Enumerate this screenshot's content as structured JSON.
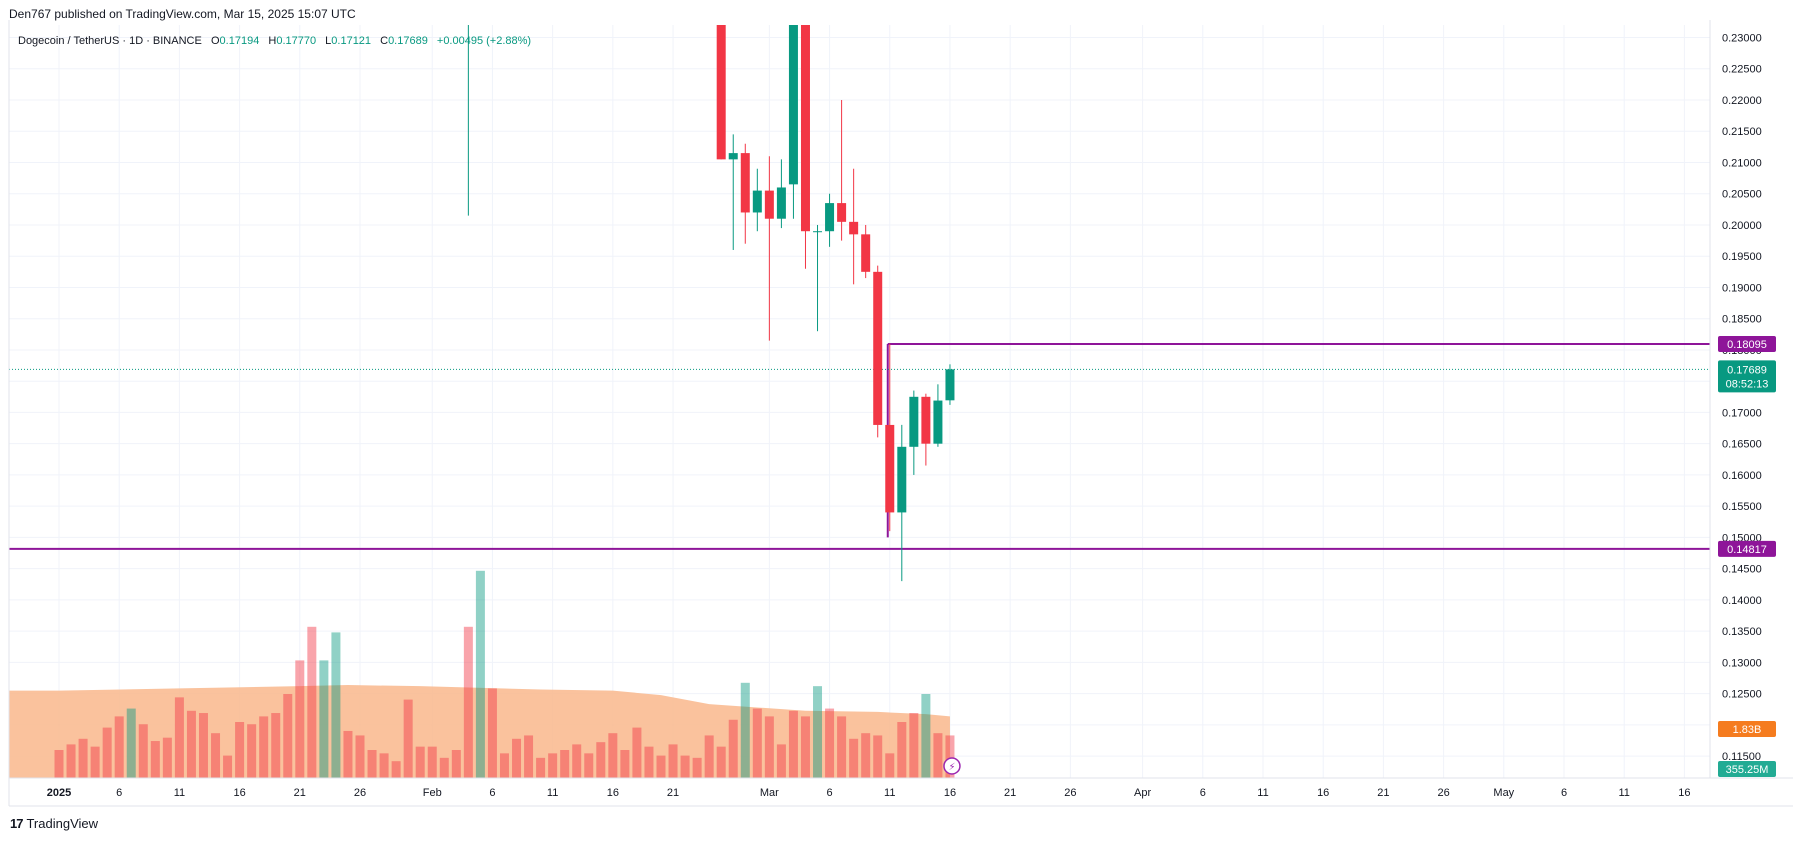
{
  "header": {
    "published": "Den767 published on TradingView.com, Mar 15, 2025 15:07 UTC"
  },
  "legend": {
    "symbol": "Dogecoin / TetherUS · 1D · BINANCE",
    "o_label": "O",
    "o": "0.17194",
    "h_label": "H",
    "h": "0.17770",
    "l_label": "L",
    "l": "0.17121",
    "c_label": "C",
    "c": "0.17689",
    "change": "+0.00495 (+2.88%)"
  },
  "footer": {
    "logo": "17",
    "brand": "TradingView"
  },
  "colors": {
    "up": "#089981",
    "down": "#f23645",
    "level": "#8e1599",
    "volume_ma": "#f9b78c"
  },
  "chart_data": {
    "type": "candlestick",
    "price_axis": {
      "ticks": [
        "0.23000",
        "0.22500",
        "0.22000",
        "0.21500",
        "0.21000",
        "0.20500",
        "0.20000",
        "0.19500",
        "0.19000",
        "0.18500",
        "0.18000",
        "0.17500",
        "0.17000",
        "0.16500",
        "0.16000",
        "0.15500",
        "0.15000",
        "0.14500",
        "0.14000",
        "0.13500",
        "0.13000",
        "0.12500",
        "0.12000",
        "0.11500"
      ],
      "range": [
        0.1115,
        0.232
      ]
    },
    "time_axis": {
      "labels": [
        {
          "text": "2025",
          "day": 0,
          "bold": true
        },
        {
          "text": "6",
          "day": 5
        },
        {
          "text": "11",
          "day": 10
        },
        {
          "text": "16",
          "day": 15
        },
        {
          "text": "21",
          "day": 20
        },
        {
          "text": "26",
          "day": 25
        },
        {
          "text": "Feb",
          "day": 31
        },
        {
          "text": "6",
          "day": 36
        },
        {
          "text": "11",
          "day": 41
        },
        {
          "text": "16",
          "day": 46
        },
        {
          "text": "21",
          "day": 51
        },
        {
          "text": "Mar",
          "day": 59
        },
        {
          "text": "6",
          "day": 64
        },
        {
          "text": "11",
          "day": 69
        },
        {
          "text": "16",
          "day": 74
        },
        {
          "text": "21",
          "day": 79
        },
        {
          "text": "26",
          "day": 84
        },
        {
          "text": "Apr",
          "day": 90
        },
        {
          "text": "6",
          "day": 95
        },
        {
          "text": "11",
          "day": 100
        },
        {
          "text": "16",
          "day": 105
        },
        {
          "text": "21",
          "day": 110
        },
        {
          "text": "26",
          "day": 115
        },
        {
          "text": "May",
          "day": 120
        },
        {
          "text": "6",
          "day": 125
        },
        {
          "text": "11",
          "day": 130
        },
        {
          "text": "16",
          "day": 135
        }
      ]
    },
    "candles": [
      {
        "day": 34,
        "o": 0.235,
        "h": 0.24,
        "l": 0.2015,
        "c": 0.238
      },
      {
        "day": 55,
        "o": 0.235,
        "h": 0.235,
        "l": 0.2105,
        "c": 0.2105
      },
      {
        "day": 56,
        "o": 0.2105,
        "h": 0.2145,
        "l": 0.196,
        "c": 0.2115
      },
      {
        "day": 57,
        "o": 0.2115,
        "h": 0.213,
        "l": 0.197,
        "c": 0.202
      },
      {
        "day": 58,
        "o": 0.202,
        "h": 0.209,
        "l": 0.199,
        "c": 0.2055
      },
      {
        "day": 59,
        "o": 0.2055,
        "h": 0.211,
        "l": 0.1815,
        "c": 0.201
      },
      {
        "day": 60,
        "o": 0.201,
        "h": 0.2105,
        "l": 0.1995,
        "c": 0.206
      },
      {
        "day": 61,
        "o": 0.2065,
        "h": 0.236,
        "l": 0.201,
        "c": 0.236
      },
      {
        "day": 62,
        "o": 0.236,
        "h": 0.236,
        "l": 0.193,
        "c": 0.199
      },
      {
        "day": 63,
        "o": 0.199,
        "h": 0.2,
        "l": 0.183,
        "c": 0.199
      },
      {
        "day": 64,
        "o": 0.199,
        "h": 0.205,
        "l": 0.1965,
        "c": 0.2035
      },
      {
        "day": 65,
        "o": 0.2035,
        "h": 0.22,
        "l": 0.1975,
        "c": 0.2005
      },
      {
        "day": 66,
        "o": 0.2005,
        "h": 0.209,
        "l": 0.1905,
        "c": 0.1985
      },
      {
        "day": 67,
        "o": 0.1985,
        "h": 0.2,
        "l": 0.1915,
        "c": 0.1925
      },
      {
        "day": 68,
        "o": 0.1925,
        "h": 0.1935,
        "l": 0.166,
        "c": 0.168
      },
      {
        "day": 69,
        "o": 0.168,
        "h": 0.181,
        "l": 0.151,
        "c": 0.154
      },
      {
        "day": 70,
        "o": 0.154,
        "h": 0.168,
        "l": 0.143,
        "c": 0.1645
      },
      {
        "day": 71,
        "o": 0.1645,
        "h": 0.1735,
        "l": 0.16,
        "c": 0.1725
      },
      {
        "day": 72,
        "o": 0.1725,
        "h": 0.173,
        "l": 0.1615,
        "c": 0.165
      },
      {
        "day": 73,
        "o": 0.165,
        "h": 0.1745,
        "l": 0.1645,
        "c": 0.1719
      },
      {
        "day": 74,
        "o": 0.17194,
        "h": 0.1777,
        "l": 0.17121,
        "c": 0.17689
      }
    ],
    "volume_bars": [
      {
        "day": 0,
        "v": 0.25,
        "up": false
      },
      {
        "day": 1,
        "v": 0.3,
        "up": false
      },
      {
        "day": 2,
        "v": 0.35,
        "up": false
      },
      {
        "day": 3,
        "v": 0.28,
        "up": false
      },
      {
        "day": 4,
        "v": 0.45,
        "up": false
      },
      {
        "day": 5,
        "v": 0.55,
        "up": false
      },
      {
        "day": 6,
        "v": 0.62,
        "up": true
      },
      {
        "day": 7,
        "v": 0.48,
        "up": false
      },
      {
        "day": 8,
        "v": 0.33,
        "up": false
      },
      {
        "day": 9,
        "v": 0.36,
        "up": false
      },
      {
        "day": 10,
        "v": 0.72,
        "up": false
      },
      {
        "day": 11,
        "v": 0.6,
        "up": false
      },
      {
        "day": 12,
        "v": 0.58,
        "up": false
      },
      {
        "day": 13,
        "v": 0.4,
        "up": false
      },
      {
        "day": 14,
        "v": 0.2,
        "up": false
      },
      {
        "day": 15,
        "v": 0.5,
        "up": false
      },
      {
        "day": 16,
        "v": 0.48,
        "up": false
      },
      {
        "day": 17,
        "v": 0.55,
        "up": false
      },
      {
        "day": 18,
        "v": 0.58,
        "up": false
      },
      {
        "day": 19,
        "v": 0.75,
        "up": false
      },
      {
        "day": 20,
        "v": 1.05,
        "up": false
      },
      {
        "day": 21,
        "v": 1.35,
        "up": false
      },
      {
        "day": 22,
        "v": 1.05,
        "up": true
      },
      {
        "day": 23,
        "v": 1.3,
        "up": true
      },
      {
        "day": 24,
        "v": 0.42,
        "up": false
      },
      {
        "day": 25,
        "v": 0.38,
        "up": false
      },
      {
        "day": 26,
        "v": 0.25,
        "up": false
      },
      {
        "day": 27,
        "v": 0.22,
        "up": false
      },
      {
        "day": 28,
        "v": 0.15,
        "up": false
      },
      {
        "day": 29,
        "v": 0.7,
        "up": false
      },
      {
        "day": 30,
        "v": 0.28,
        "up": false
      },
      {
        "day": 31,
        "v": 0.28,
        "up": false
      },
      {
        "day": 32,
        "v": 0.18,
        "up": false
      },
      {
        "day": 33,
        "v": 0.25,
        "up": false
      },
      {
        "day": 34,
        "v": 1.35,
        "up": false
      },
      {
        "day": 35,
        "v": 1.85,
        "up": true
      },
      {
        "day": 36,
        "v": 0.8,
        "up": false
      },
      {
        "day": 37,
        "v": 0.22,
        "up": false
      },
      {
        "day": 38,
        "v": 0.35,
        "up": false
      },
      {
        "day": 39,
        "v": 0.38,
        "up": false
      },
      {
        "day": 40,
        "v": 0.18,
        "up": false
      },
      {
        "day": 41,
        "v": 0.22,
        "up": false
      },
      {
        "day": 42,
        "v": 0.25,
        "up": false
      },
      {
        "day": 43,
        "v": 0.3,
        "up": false
      },
      {
        "day": 44,
        "v": 0.22,
        "up": false
      },
      {
        "day": 45,
        "v": 0.32,
        "up": false
      },
      {
        "day": 46,
        "v": 0.4,
        "up": false
      },
      {
        "day": 47,
        "v": 0.25,
        "up": false
      },
      {
        "day": 48,
        "v": 0.45,
        "up": false
      },
      {
        "day": 49,
        "v": 0.28,
        "up": false
      },
      {
        "day": 50,
        "v": 0.2,
        "up": false
      },
      {
        "day": 51,
        "v": 0.3,
        "up": false
      },
      {
        "day": 52,
        "v": 0.2,
        "up": false
      },
      {
        "day": 53,
        "v": 0.18,
        "up": false
      },
      {
        "day": 54,
        "v": 0.38,
        "up": false
      },
      {
        "day": 55,
        "v": 0.28,
        "up": false
      },
      {
        "day": 56,
        "v": 0.52,
        "up": false
      },
      {
        "day": 57,
        "v": 0.85,
        "up": true
      },
      {
        "day": 58,
        "v": 0.62,
        "up": false
      },
      {
        "day": 59,
        "v": 0.55,
        "up": false
      },
      {
        "day": 60,
        "v": 0.3,
        "up": false
      },
      {
        "day": 61,
        "v": 0.6,
        "up": false
      },
      {
        "day": 62,
        "v": 0.55,
        "up": false
      },
      {
        "day": 63,
        "v": 0.82,
        "up": true
      },
      {
        "day": 64,
        "v": 0.62,
        "up": false
      },
      {
        "day": 65,
        "v": 0.55,
        "up": false
      },
      {
        "day": 66,
        "v": 0.35,
        "up": false
      },
      {
        "day": 67,
        "v": 0.4,
        "up": false
      },
      {
        "day": 68,
        "v": 0.38,
        "up": false
      },
      {
        "day": 69,
        "v": 0.22,
        "up": false
      },
      {
        "day": 70,
        "v": 0.5,
        "up": false
      },
      {
        "day": 71,
        "v": 0.58,
        "up": false
      },
      {
        "day": 72,
        "v": 0.75,
        "up": true
      },
      {
        "day": 73,
        "v": 0.4,
        "up": false
      },
      {
        "day": 74,
        "v": 0.38,
        "up": false
      }
    ],
    "volume_ma": [
      {
        "day": 0,
        "v": 0.78
      },
      {
        "day": 10,
        "v": 0.8
      },
      {
        "day": 20,
        "v": 0.82
      },
      {
        "day": 24,
        "v": 0.83
      },
      {
        "day": 30,
        "v": 0.82
      },
      {
        "day": 40,
        "v": 0.79
      },
      {
        "day": 46,
        "v": 0.78
      },
      {
        "day": 50,
        "v": 0.74
      },
      {
        "day": 54,
        "v": 0.66
      },
      {
        "day": 58,
        "v": 0.63
      },
      {
        "day": 62,
        "v": 0.6
      },
      {
        "day": 68,
        "v": 0.59
      },
      {
        "day": 72,
        "v": 0.57
      },
      {
        "day": 74,
        "v": 0.55
      }
    ],
    "levels": [
      {
        "price": 0.18095,
        "label": "0.18095",
        "from_day": 69
      },
      {
        "price": 0.14817,
        "label": "0.14817",
        "from_day": -1
      }
    ],
    "last_price": {
      "price": 0.17689,
      "label": "0.17689",
      "countdown": "08:52:13"
    },
    "volume_tags": [
      {
        "label": "1.83B",
        "color": "#f57c1f"
      },
      {
        "label": "355.25M",
        "color": "#22ab94"
      }
    ]
  }
}
